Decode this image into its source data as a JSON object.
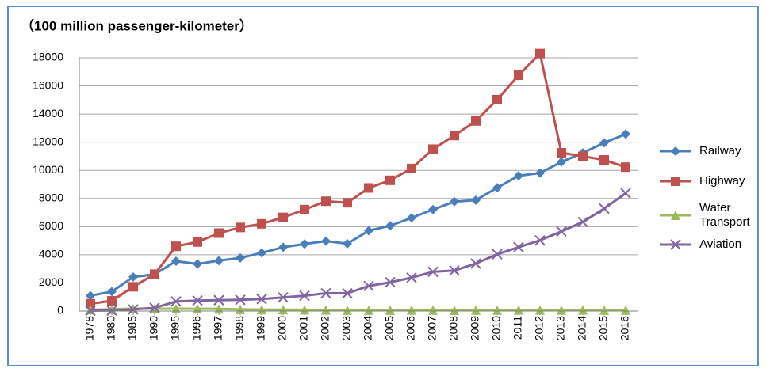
{
  "chart_data": {
    "type": "line",
    "title": "（100 million passenger-kilometer）",
    "categories": [
      "1978",
      "1980",
      "1985",
      "1990",
      "1995",
      "1996",
      "1997",
      "1998",
      "1999",
      "2000",
      "2001",
      "2002",
      "2003",
      "2004",
      "2005",
      "2006",
      "2007",
      "2008",
      "2009",
      "2010",
      "2011",
      "2012",
      "2013",
      "2014",
      "2015",
      "2016"
    ],
    "series": [
      {
        "name": "Railway",
        "color": "#4a7ebb",
        "marker": "diamond",
        "values": [
          1093,
          1383,
          2416,
          2613,
          3546,
          3347,
          3585,
          3773,
          4136,
          4533,
          4767,
          4969,
          4789,
          5712,
          6062,
          6622,
          7216,
          7779,
          7879,
          8762,
          9612,
          9812,
          10596,
          11242,
          11961,
          12579
        ]
      },
      {
        "name": "Highway",
        "color": "#c0504d",
        "marker": "square",
        "values": [
          521,
          730,
          1725,
          2620,
          4603,
          4908,
          5541,
          5943,
          6199,
          6657,
          7207,
          7806,
          7696,
          8748,
          9292,
          10131,
          11507,
          12476,
          13511,
          15021,
          16760,
          18300,
          11251,
          10997,
          10743,
          10229
        ]
      },
      {
        "name": "Water Transport",
        "color": "#9bbb59",
        "marker": "triangle",
        "values": [
          101,
          129,
          179,
          165,
          172,
          161,
          156,
          120,
          107,
          101,
          90,
          82,
          63,
          66,
          68,
          74,
          78,
          59,
          69,
          72,
          75,
          77,
          68,
          74,
          73,
          72
        ]
      },
      {
        "name": "Aviation",
        "color": "#8064a2",
        "marker": "x",
        "values": [
          28,
          40,
          117,
          231,
          681,
          747,
          774,
          800,
          857,
          971,
          1091,
          1269,
          1263,
          1782,
          2045,
          2371,
          2791,
          2883,
          3375,
          4039,
          4537,
          5026,
          5657,
          6334,
          7283,
          8378
        ]
      }
    ],
    "ylim": [
      0,
      18000
    ],
    "yticks": [
      0,
      2000,
      4000,
      6000,
      8000,
      10000,
      12000,
      14000,
      16000,
      18000
    ],
    "grid": true,
    "legend": "right"
  }
}
